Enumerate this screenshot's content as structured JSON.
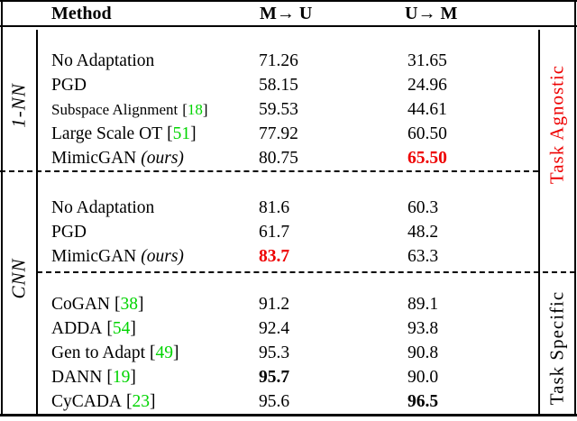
{
  "table": {
    "header": {
      "method": "Method",
      "col1": "M→ U",
      "col2": "U→ M"
    },
    "symbols": {
      "cite_open": "[",
      "cite_close": "]"
    },
    "groups": [
      {
        "rows": [
          {
            "method": "No Adaptation",
            "m_to_u": "71.26",
            "u_to_m": "31.65"
          },
          {
            "method": "PGD",
            "m_to_u": "58.15",
            "u_to_m": "24.96"
          },
          {
            "method": "Subspace Alignment",
            "cite": "18",
            "m_to_u": "59.53",
            "u_to_m": "44.61"
          },
          {
            "method": "Large Scale OT",
            "cite": "51",
            "m_to_u": "77.92",
            "u_to_m": "60.50"
          },
          {
            "method": "MimicGAN",
            "ours_suffix": "(ours)",
            "m_to_u": "80.75",
            "u_to_m": "65.50"
          }
        ]
      },
      {
        "rows": [
          {
            "method": "No Adaptation",
            "m_to_u": "81.6",
            "u_to_m": "60.3"
          },
          {
            "method": "PGD",
            "m_to_u": "61.7",
            "u_to_m": "48.2"
          },
          {
            "method": "MimicGAN",
            "ours_suffix": "(ours)",
            "m_to_u": "83.7",
            "u_to_m": "63.3"
          }
        ]
      },
      {
        "rows": [
          {
            "method": "CoGAN",
            "cite": "38",
            "m_to_u": "91.2",
            "u_to_m": "89.1"
          },
          {
            "method": "ADDA",
            "cite": "54",
            "m_to_u": "92.4",
            "u_to_m": "93.8"
          },
          {
            "method": "Gen to Adapt",
            "cite": "49",
            "m_to_u": "95.3",
            "u_to_m": "90.8"
          },
          {
            "method": "DANN",
            "cite": "19",
            "m_to_u": "95.7",
            "u_to_m": "90.0"
          },
          {
            "method": "CyCADA",
            "cite": "23",
            "m_to_u": "95.6",
            "u_to_m": "96.5"
          }
        ]
      }
    ],
    "side_labels": {
      "left_top": "1-NN",
      "left_bottom": "CNN",
      "right_top": "Task Agnostic",
      "right_bottom": "Task Specific"
    }
  },
  "colors": {
    "highlight_red": "#ee0000",
    "citation_green": "#00d400",
    "text_black": "#000000",
    "background": "#ffffff"
  }
}
